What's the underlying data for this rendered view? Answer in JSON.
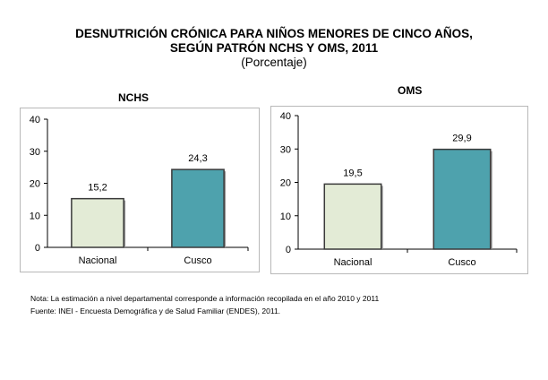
{
  "figure": {
    "title_line1": "DESNUTRICIÓN CRÓNICA PARA NIÑOS MENORES DE CINCO AÑOS,",
    "title_line2": "SEGÚN PATRÓN NCHS Y OMS, 2011",
    "subtitle": "(Porcentaje)"
  },
  "notes": {
    "note": "Nota: La estimación a nivel departamental corresponde a información recopilada en el año 2010 y 2011",
    "source": "Fuente: INEI - Encuesta Demográfica y de Salud Familiar (ENDES), 2011."
  },
  "colors": {
    "nacional_bar": "#e3ebd6",
    "cusco_bar": "#4ea2ad",
    "bar_border": "#3a3a3a"
  },
  "chart_data": [
    {
      "type": "bar",
      "title": "NCHS",
      "categories": [
        "Nacional",
        "Cusco"
      ],
      "values": [
        15.2,
        24.3
      ],
      "value_labels": [
        "15,2",
        "24,3"
      ],
      "ylim": [
        0,
        40
      ],
      "yticks": [
        0,
        10,
        20,
        30,
        40
      ],
      "grid": false,
      "xlabel": "",
      "ylabel": ""
    },
    {
      "type": "bar",
      "title": "OMS",
      "categories": [
        "Nacional",
        "Cusco"
      ],
      "values": [
        19.5,
        29.9
      ],
      "value_labels": [
        "19,5",
        "29,9"
      ],
      "ylim": [
        0,
        40
      ],
      "yticks": [
        0,
        10,
        20,
        30,
        40
      ],
      "grid": false,
      "xlabel": "",
      "ylabel": ""
    }
  ]
}
